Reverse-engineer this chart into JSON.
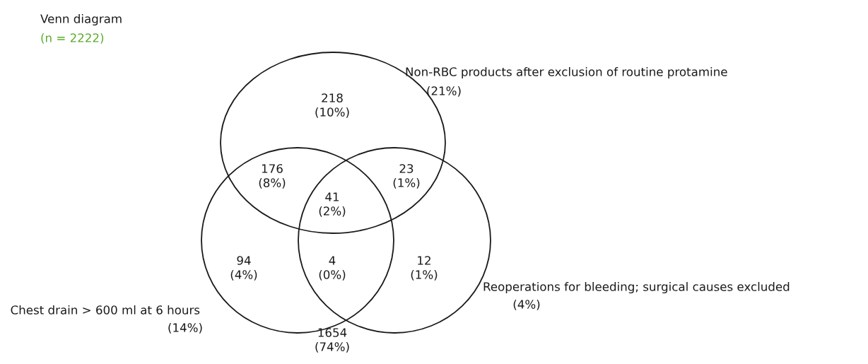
{
  "chart_data": {
    "type": "other",
    "title": "Venn diagram",
    "subtitle": "(n = 2222)",
    "annotations": [
      "Non-RBC products after exclusion of routine protamine",
      "(21%)",
      "Chest drain > 600 ml at 6 hours",
      "(14%)",
      "Reoperations for bleeding; surgical causes excluded",
      "(4%)",
      "(10%)",
      "(8%)",
      "(1%)",
      "(2%)",
      "(4%)",
      "(0%)",
      "(1%)",
      "(74%)"
    ],
    "categories": [
      null,
      null,
      null,
      null,
      null,
      null,
      null,
      null
    ],
    "values": [
      218,
      176,
      23,
      41,
      94,
      4,
      12,
      1654
    ],
    "data_labels": true
  }
}
